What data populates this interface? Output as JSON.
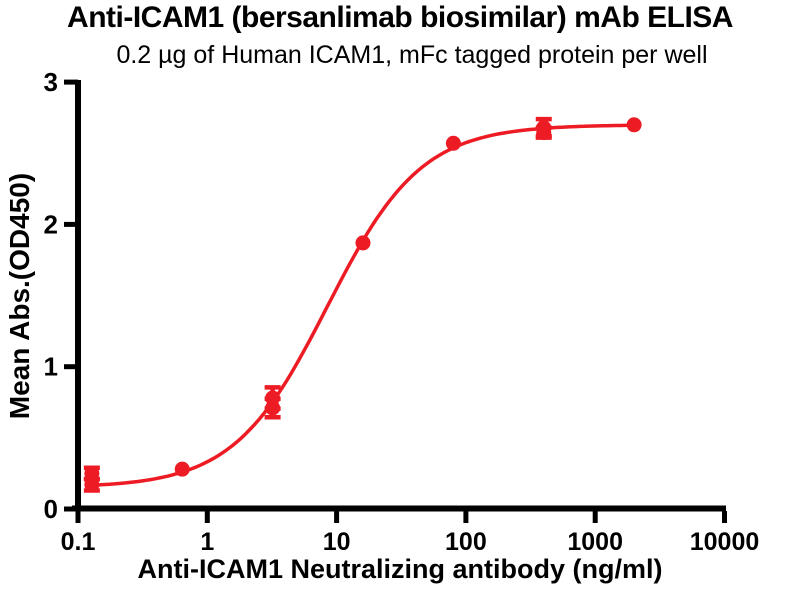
{
  "chart": {
    "title": "Anti-ICAM1 (bersanlimab biosimilar) mAb ELISA",
    "subtitle": "0.2 µg of Human ICAM1, mFc tagged protein per well",
    "xlabel": "Anti-ICAM1 Neutralizing antibody (ng/ml)",
    "ylabel": "Mean Abs.(OD450)"
  },
  "chart_data": {
    "type": "scatter",
    "x_scale": "log10",
    "xlim": [
      0.1,
      10000
    ],
    "ylim": [
      0,
      3
    ],
    "x_ticks": [
      0.1,
      1,
      10,
      100,
      1000,
      10000
    ],
    "x_tick_labels": [
      "0.1",
      "1",
      "10",
      "100",
      "1000",
      "10000"
    ],
    "y_ticks": [
      0,
      1,
      2,
      3
    ],
    "y_tick_labels": [
      "0",
      "1",
      "2",
      "3"
    ],
    "grid": false,
    "legend": false,
    "accent_color": "#ED1C24",
    "axis_color": "#000000",
    "series": [
      {
        "name": "Anti-ICAM1 mAb",
        "marker": "circle",
        "points": [
          {
            "x": 0.128,
            "y": 0.25,
            "err": 0.04
          },
          {
            "x": 0.128,
            "y": 0.17,
            "err": 0.04
          },
          {
            "x": 0.64,
            "y": 0.28
          },
          {
            "x": 3.2,
            "y": 0.78,
            "err": 0.075
          },
          {
            "x": 3.2,
            "y": 0.71,
            "err": 0.065
          },
          {
            "x": 16,
            "y": 1.87
          },
          {
            "x": 80,
            "y": 2.57
          },
          {
            "x": 400,
            "y": 2.68,
            "err": 0.06
          },
          {
            "x": 400,
            "y": 2.645,
            "err": 0.035
          },
          {
            "x": 2000,
            "y": 2.7
          }
        ]
      }
    ],
    "fit_curve": {
      "model": "4PL",
      "bottom": 0.15,
      "top": 2.7,
      "ec50": 8.5,
      "hill": 1.2,
      "x_start": 0.128,
      "x_end": 2000
    }
  }
}
